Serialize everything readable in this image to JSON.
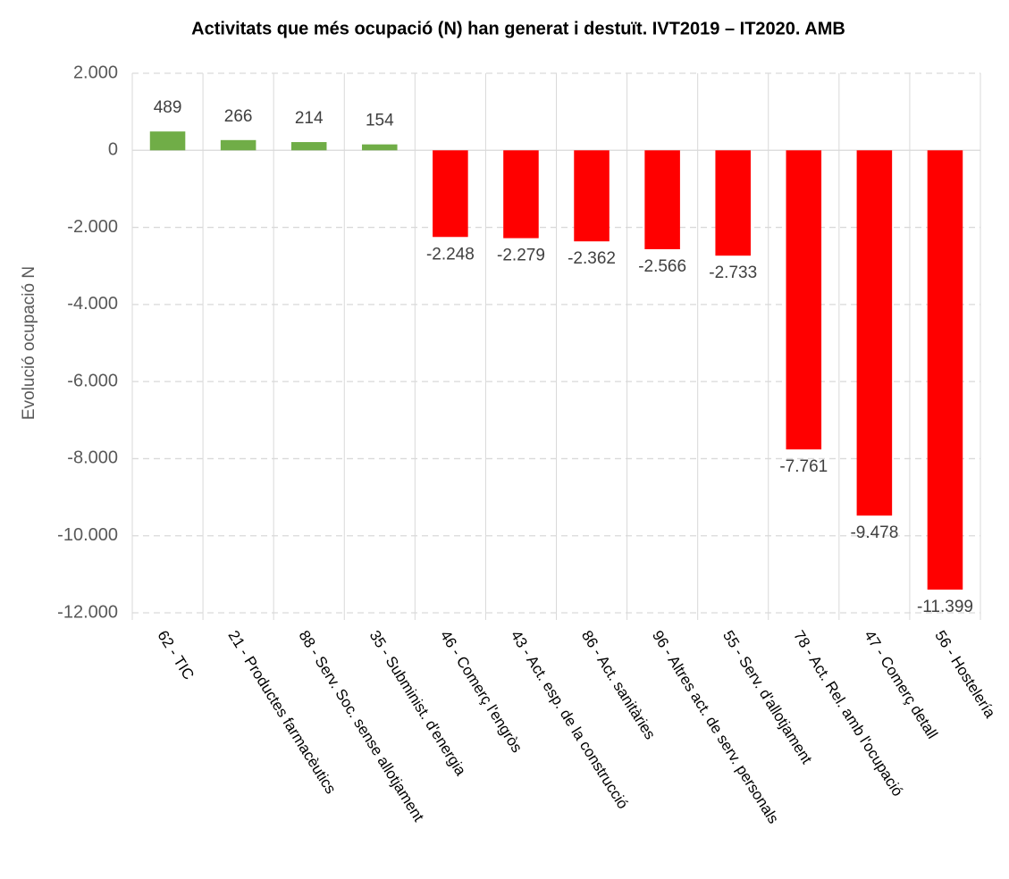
{
  "chart_data": {
    "type": "bar",
    "title": "Activitats que més ocupació (N) han generat i destuït. IVT2019 – IT2020. AMB",
    "y_label": "Evolució ocupació N",
    "categories": [
      "62 - TIC",
      "21 - Productes farmacèutics",
      "88 - Serv. Soc. sense allotjament",
      "35 - Subminist. d'energia",
      "46 - Comerç l'engròs",
      "43 - Act. esp. de la construcció",
      "86 - Act. sanitàries",
      "96 - Altres act. de serv. personals",
      "55 - Serv. d'allotjament",
      "78 - Act. Rel. amb l'ocupació",
      "47 - Comerç detall",
      "56 - Hostelería"
    ],
    "values": [
      489,
      266,
      214,
      154,
      -2248,
      -2279,
      -2362,
      -2566,
      -2733,
      -7761,
      -9478,
      -11399
    ],
    "value_labels": [
      "489",
      "266",
      "214",
      "154",
      "-2.248",
      "-2.279",
      "-2.362",
      "-2.566",
      "-2.733",
      "-7.761",
      "-9.478",
      "-11.399"
    ],
    "colors": [
      "#70ad47",
      "#70ad47",
      "#70ad47",
      "#70ad47",
      "#ff0000",
      "#ff0000",
      "#ff0000",
      "#ff0000",
      "#ff0000",
      "#ff0000",
      "#ff0000",
      "#ff0000"
    ],
    "ylim": [
      -12000,
      2000
    ],
    "yticks": [
      {
        "value": 2000,
        "label": "2.000"
      },
      0,
      {
        "value": -2000,
        "label": "-2.000"
      },
      {
        "value": -4000,
        "label": "-4.000"
      },
      {
        "value": -6000,
        "label": "-6.000"
      },
      {
        "value": -8000,
        "label": "-8.000"
      },
      {
        "value": -10000,
        "label": "-10.000"
      },
      {
        "value": -12000,
        "label": "-12.000"
      }
    ],
    "grid": true
  }
}
